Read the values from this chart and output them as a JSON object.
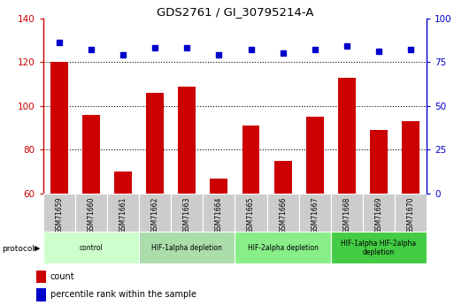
{
  "title": "GDS2761 / GI_30795214-A",
  "samples": [
    "GSM71659",
    "GSM71660",
    "GSM71661",
    "GSM71662",
    "GSM71663",
    "GSM71664",
    "GSM71665",
    "GSM71666",
    "GSM71667",
    "GSM71668",
    "GSM71669",
    "GSM71670"
  ],
  "bar_values": [
    120,
    96,
    70,
    106,
    109,
    67,
    91,
    75,
    95,
    113,
    89,
    93
  ],
  "dot_pct": [
    86,
    82,
    79,
    83,
    83,
    79,
    82,
    80,
    82,
    84,
    81,
    82
  ],
  "ylim_left": [
    60,
    140
  ],
  "ylim_right": [
    0,
    100
  ],
  "yticks_left": [
    60,
    80,
    100,
    120,
    140
  ],
  "yticks_right": [
    0,
    25,
    50,
    75,
    100
  ],
  "bar_color": "#cc0000",
  "dot_color": "#0000cc",
  "grid_yticks": [
    80,
    100,
    120
  ],
  "tick_label_bg": "#cccccc",
  "protocol_groups": [
    {
      "label": "control",
      "start": 0,
      "end": 2,
      "color": "#ccffcc"
    },
    {
      "label": "HIF-1alpha depletion",
      "start": 3,
      "end": 5,
      "color": "#aaddaa"
    },
    {
      "label": "HIF-2alpha depletion",
      "start": 6,
      "end": 8,
      "color": "#88ee88"
    },
    {
      "label": "HIF-1alpha HIF-2alpha\ndepletion",
      "start": 9,
      "end": 11,
      "color": "#44cc44"
    }
  ],
  "legend_count_label": "count",
  "legend_pct_label": "percentile rank within the sample",
  "bar_width": 0.55,
  "dot_size": 5
}
